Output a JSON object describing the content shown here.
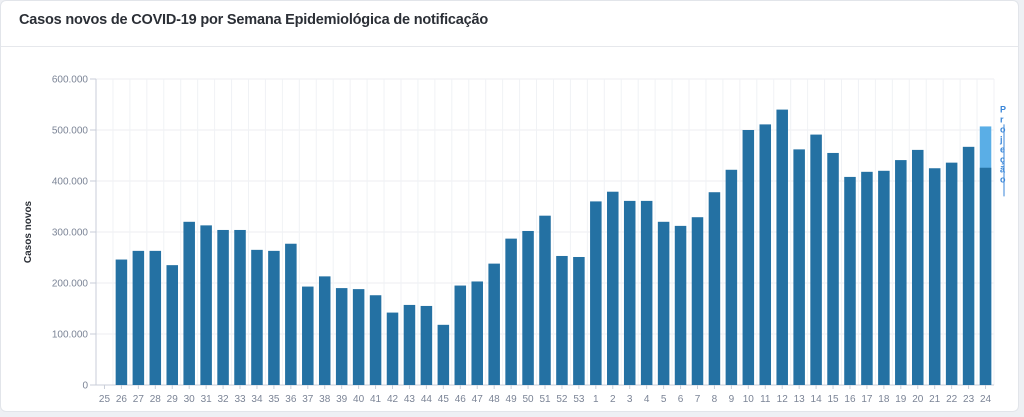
{
  "header": {
    "title": "Casos novos de COVID-19 por Semana Epidemiológica de notificação"
  },
  "chart_data": {
    "type": "bar",
    "title": "Casos novos de COVID-19 por Semana Epidemiológica de notificação",
    "ylabel": "Casos novos",
    "xlabel": "",
    "ylim": [
      0,
      600000
    ],
    "y_ticks": [
      0,
      100000,
      200000,
      300000,
      400000,
      500000,
      600000
    ],
    "y_tick_labels": [
      "0",
      "100.000",
      "200.000",
      "300.000",
      "400.000",
      "500.000",
      "600.000"
    ],
    "grid": true,
    "categories": [
      "25",
      "26",
      "27",
      "28",
      "29",
      "30",
      "31",
      "32",
      "33",
      "34",
      "35",
      "36",
      "37",
      "38",
      "39",
      "40",
      "41",
      "42",
      "43",
      "44",
      "45",
      "46",
      "47",
      "48",
      "49",
      "50",
      "51",
      "52",
      "53",
      "1",
      "2",
      "3",
      "4",
      "5",
      "6",
      "7",
      "8",
      "9",
      "10",
      "11",
      "12",
      "13",
      "14",
      "15",
      "16",
      "17",
      "18",
      "19",
      "20",
      "21",
      "22",
      "23",
      "24"
    ],
    "series": [
      {
        "color": "#2471a3",
        "values": [
          0,
          246000,
          263000,
          263000,
          235000,
          320000,
          313000,
          304000,
          304000,
          265000,
          263000,
          277000,
          193000,
          213000,
          190000,
          188000,
          176000,
          142000,
          157000,
          155000,
          118000,
          195000,
          203000,
          238000,
          287000,
          302000,
          332000,
          253000,
          251000,
          360000,
          379000,
          361000,
          361000,
          320000,
          312000,
          329000,
          378000,
          422000,
          500000,
          511000,
          540000,
          462000,
          491000,
          455000,
          408000,
          418000,
          420000,
          441000,
          461000,
          425000,
          436000,
          467000,
          426000
        ]
      }
    ],
    "projection": {
      "label": "Projeção",
      "category": "24",
      "value": 507000,
      "color": "#5aaee6"
    }
  }
}
